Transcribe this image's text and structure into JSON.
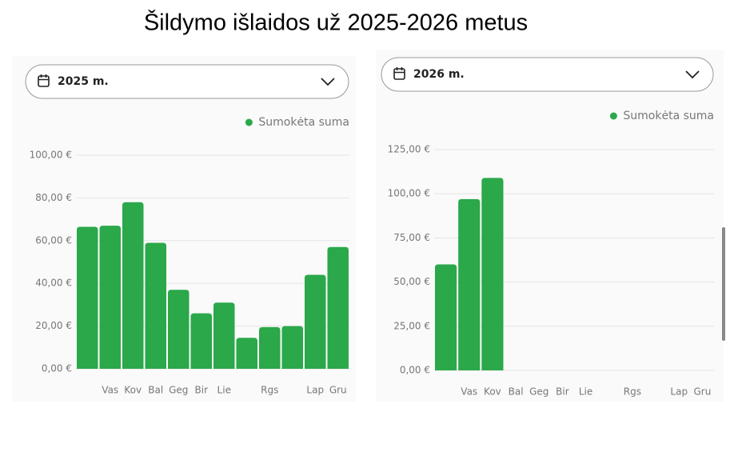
{
  "title": "Šildymo išlaidos už 2025-2026 metus",
  "chart_data": [
    {
      "type": "bar",
      "selector": "2025 m.",
      "categories": [
        null,
        "Vas",
        "Kov",
        "Bal",
        "Geg",
        "Bir",
        "Lie",
        null,
        "Rgs",
        null,
        "Lap",
        "Gru"
      ],
      "series": [
        {
          "name": "Sumokėta suma",
          "color": "#2ba84a",
          "values": [
            66.5,
            67,
            78,
            59,
            37,
            26,
            31,
            14.5,
            19.5,
            20,
            44,
            57
          ]
        }
      ],
      "ylim": [
        0,
        100
      ],
      "yticks": [
        {
          "value": 0,
          "label": "0,00 €"
        },
        {
          "value": 20,
          "label": "20,00 €"
        },
        {
          "value": 40,
          "label": "40,00 €"
        },
        {
          "value": 60,
          "label": "60,00 €"
        },
        {
          "value": 80,
          "label": "80,00 €"
        },
        {
          "value": 100,
          "label": "100,00 €"
        }
      ],
      "grid": true,
      "legend": "top-right"
    },
    {
      "type": "bar",
      "selector": "2026 m.",
      "categories": [
        null,
        "Vas",
        "Kov",
        "Bal",
        "Geg",
        "Bir",
        "Lie",
        null,
        "Rgs",
        null,
        "Lap",
        "Gru"
      ],
      "series": [
        {
          "name": "Sumokėta suma",
          "color": "#2ba84a",
          "values": [
            60,
            97,
            109,
            null,
            null,
            null,
            null,
            null,
            null,
            null,
            null,
            null
          ]
        }
      ],
      "ylim": [
        0,
        125
      ],
      "yticks": [
        {
          "value": 0,
          "label": "0,00 €"
        },
        {
          "value": 25,
          "label": "25,00 €"
        },
        {
          "value": 50,
          "label": "50,00 €"
        },
        {
          "value": 75,
          "label": "75,00 €"
        },
        {
          "value": 100,
          "label": "100,00 €"
        },
        {
          "value": 125,
          "label": "125,00 €"
        }
      ],
      "grid": true,
      "legend": "top-right"
    }
  ]
}
